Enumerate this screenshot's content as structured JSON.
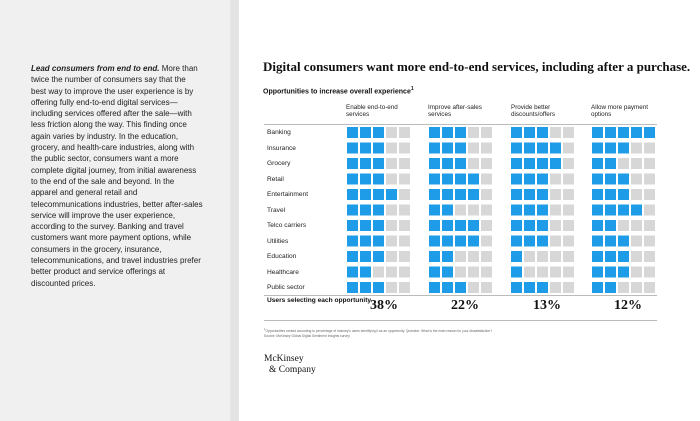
{
  "sidebar": {
    "lead": "Lead consumers from end to end.",
    "body": "More than twice the number of consumers say that the best way to improve the user experience is by offering fully end-to-end digital services—including services offered after the sale—with less friction along the way. This finding once again varies by industry. In the education, grocery, and health-care industries, along with the public sector, consumers want a more complete digital journey, from initial awareness to the end of the sale and beyond. In the apparel and general retail and telecommunications industries, better after-sales service will improve the user experience, according to the survey. Banking and travel customers want more payment options, while consumers in the grocery, insurance, telecommunications, and travel industries prefer better product and service offerings at discounted prices."
  },
  "headline": "Digital consumers want more end-to-end services, including after a purchase.",
  "subtitle": "Opportunities to increase overall experience",
  "subtitle_mark": "1",
  "colors": {
    "filled": "#1f9ce8",
    "empty": "#d7d7d7",
    "sidebar_bg": "#f0f0f0"
  },
  "chart_data": {
    "type": "table",
    "title": "Opportunities to increase overall experience",
    "unit": "squares filled out of 5 per industry",
    "columns": [
      "Enable end-to-end services",
      "Improve after-sales services",
      "Provide better discounts/offers",
      "Allow more payment options"
    ],
    "rows": [
      "Banking",
      "Insurance",
      "Grocery",
      "Retail",
      "Entertainment",
      "Travel",
      "Telco carriers",
      "Utilities",
      "Education",
      "Healthcare",
      "Public sector"
    ],
    "max": 5,
    "values": [
      [
        3,
        3,
        3,
        5
      ],
      [
        3,
        3,
        4,
        3
      ],
      [
        3,
        3,
        4,
        2
      ],
      [
        3,
        4,
        3,
        3
      ],
      [
        4,
        4,
        3,
        3
      ],
      [
        3,
        2,
        3,
        4
      ],
      [
        3,
        4,
        3,
        2
      ],
      [
        3,
        4,
        3,
        3
      ],
      [
        3,
        2,
        1,
        3
      ],
      [
        2,
        2,
        1,
        3
      ],
      [
        3,
        3,
        3,
        2
      ]
    ],
    "summary_label": "Users selecting each opportunity",
    "summary": [
      "38%",
      "22%",
      "13%",
      "12%"
    ]
  },
  "footnote": {
    "line1": "Opportunities ranked according to percentage of industry's users identifying it as an opportunity. Question: What is the main reason for your dissatisfaction?",
    "line1_mark": "1",
    "line2": "Source: McKinsey Global Digital Sentiment Insights survey"
  },
  "logo": {
    "line1": "McKinsey",
    "line2": "& Company"
  }
}
